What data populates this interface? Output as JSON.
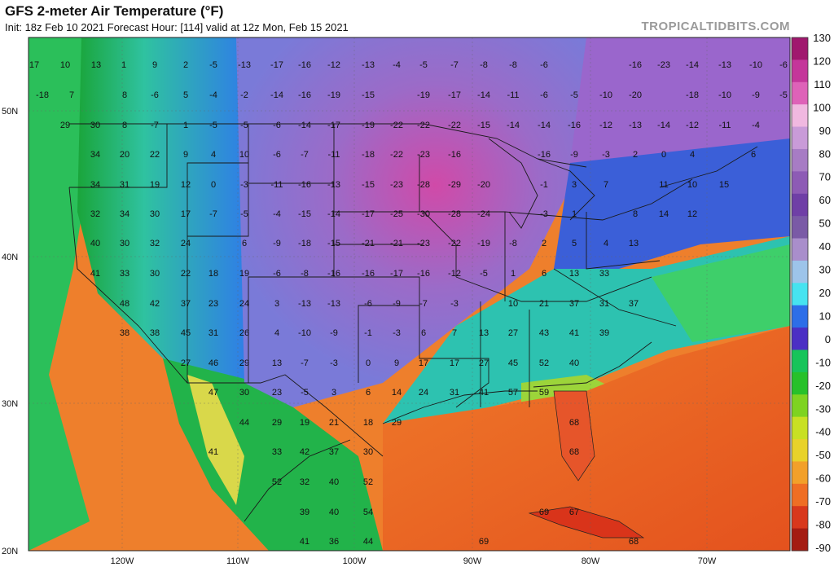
{
  "header": {
    "title": "GFS 2-meter Air Temperature (°F)",
    "subtitle": "Init: 18z Feb 10 2021   Forecast Hour: [114]   valid at 12z Mon, Feb 15 2021",
    "brand": "TROPICALTIDBITS.COM"
  },
  "map": {
    "latitude_labels": [
      "50N",
      "40N",
      "30N",
      "20N"
    ],
    "longitude_labels": [
      "120W",
      "110W",
      "100W",
      "90W",
      "80W",
      "70W"
    ],
    "temperature_values": [
      "17",
      "10",
      "13",
      "1",
      "9",
      "2",
      "-5",
      "-13",
      "-17",
      "-16",
      "-12",
      "-13",
      "-4",
      "-5",
      "-7",
      "-8",
      "-8",
      "-6",
      "-16",
      "-23",
      "-14",
      "-13",
      "-10",
      "-6",
      "-18",
      "7",
      "8",
      "-6",
      "5",
      "-4",
      "-2",
      "-14",
      "-16",
      "-19",
      "-15",
      "-19",
      "-17",
      "-14",
      "-11",
      "-6",
      "-5",
      "-10",
      "-20",
      "-18",
      "-10",
      "-9",
      "-5",
      "29",
      "30",
      "8",
      "-7",
      "1",
      "-5",
      "-5",
      "-6",
      "-14",
      "-17",
      "-19",
      "-22",
      "-22",
      "-22",
      "-15",
      "-14",
      "-14",
      "-16",
      "-12",
      "-13",
      "-14",
      "-12",
      "-11",
      "-4",
      "34",
      "20",
      "22",
      "9",
      "4",
      "10",
      "-6",
      "-7",
      "-11",
      "-18",
      "-22",
      "-23",
      "-16",
      "-16",
      "-9",
      "-3",
      "2",
      "0",
      "4",
      "6",
      "34",
      "31",
      "19",
      "12",
      "0",
      "-3",
      "-11",
      "-16",
      "-13",
      "-15",
      "-23",
      "-28",
      "-29",
      "-20",
      "-1",
      "3",
      "7",
      "11",
      "10",
      "15",
      "32",
      "34",
      "30",
      "17",
      "-7",
      "-5",
      "-4",
      "-15",
      "-14",
      "-17",
      "-25",
      "-30",
      "-28",
      "-24",
      "-3",
      "1",
      "8",
      "14",
      "12",
      "40",
      "30",
      "32",
      "24",
      "6",
      "-9",
      "-18",
      "-15",
      "-21",
      "-21",
      "-23",
      "-22",
      "-19",
      "-8",
      "2",
      "5",
      "4",
      "13",
      "41",
      "33",
      "30",
      "22",
      "18",
      "19",
      "-6",
      "-8",
      "-16",
      "-16",
      "-17",
      "-16",
      "-12",
      "-5",
      "1",
      "6",
      "13",
      "33",
      "48",
      "42",
      "37",
      "23",
      "24",
      "3",
      "-13",
      "-13",
      "-6",
      "-9",
      "-7",
      "-3",
      "10",
      "21",
      "37",
      "31",
      "37",
      "38",
      "38",
      "45",
      "31",
      "26",
      "4",
      "-10",
      "-9",
      "-1",
      "-3",
      "6",
      "7",
      "13",
      "27",
      "43",
      "41",
      "39",
      "27",
      "46",
      "29",
      "13",
      "-7",
      "-3",
      "0",
      "9",
      "17",
      "17",
      "27",
      "45",
      "52",
      "40",
      "47",
      "30",
      "23",
      "-5",
      "3",
      "6",
      "14",
      "24",
      "31",
      "41",
      "57",
      "59",
      "44",
      "29",
      "19",
      "21",
      "18",
      "29",
      "68",
      "41",
      "33",
      "42",
      "37",
      "30",
      "68",
      "52",
      "32",
      "40",
      "52",
      "39",
      "40",
      "54",
      "69",
      "67",
      "41",
      "36",
      "44",
      "69",
      "68"
    ]
  },
  "colorbar": {
    "ticks": [
      "130",
      "120",
      "110",
      "100",
      "90",
      "80",
      "70",
      "60",
      "50",
      "40",
      "30",
      "20",
      "10",
      "0",
      "-10",
      "-20",
      "-30",
      "-40",
      "-50",
      "-60",
      "-70",
      "-80",
      "-90"
    ],
    "colors": [
      "#a0186e",
      "#c4369a",
      "#de62b8",
      "#f0b8e0",
      "#c99bd8",
      "#a77cc4",
      "#8d5bb5",
      "#6f3fa6",
      "#7a5aa6",
      "#a98ecb",
      "#9dc4ea",
      "#46e3f0",
      "#2d6ee8",
      "#4b2fc4",
      "#17c45a",
      "#27c12a",
      "#7ed321",
      "#c8e024",
      "#e8d22a",
      "#f2a02a",
      "#ef6e24",
      "#d8381c",
      "#a41c12"
    ]
  }
}
